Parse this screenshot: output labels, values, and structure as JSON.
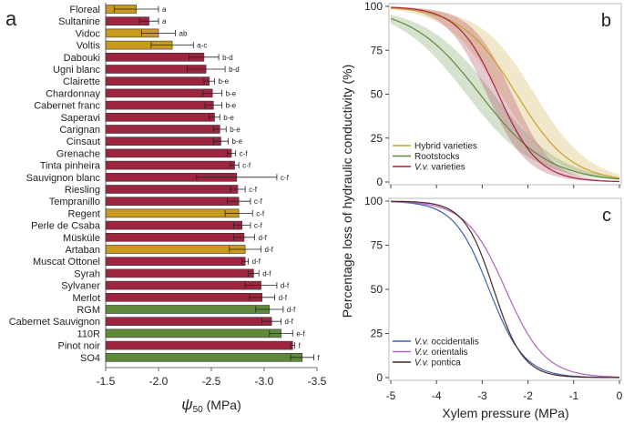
{
  "chart_data": [
    {
      "type": "bar",
      "orientation": "horizontal",
      "panel_label": "a",
      "xlabel_symbol": "ψ",
      "xlabel_sub": "50",
      "xlabel_unit": " (MPa)",
      "xlim": [
        -1.5,
        -3.5
      ],
      "xticks": [
        -1.5,
        -2.0,
        -2.5,
        -3.0,
        -3.5
      ],
      "xtick_labels": [
        "-1.5",
        "-2.0",
        "-2.5",
        "-3.0",
        "-3.5"
      ],
      "group_colors": {
        "hybrid": "#c99a1e",
        "vinifera": "#9e2540",
        "rootstock": "#5e8a3a"
      },
      "bars": [
        {
          "name": "Floreal",
          "group": "hybrid",
          "value": -1.79,
          "err": 0.21,
          "letters": "a"
        },
        {
          "name": "Sultanine",
          "group": "vinifera",
          "value": -1.91,
          "err": 0.09,
          "letters": "a"
        },
        {
          "name": "Vidoc",
          "group": "hybrid",
          "value": -2.0,
          "err": 0.16,
          "letters": "ab"
        },
        {
          "name": "Voltis",
          "group": "hybrid",
          "value": -2.13,
          "err": 0.2,
          "letters": "a-c"
        },
        {
          "name": "Dabouki",
          "group": "vinifera",
          "value": -2.43,
          "err": 0.14,
          "letters": "b-d"
        },
        {
          "name": "Ugni blanc",
          "group": "vinifera",
          "value": -2.45,
          "err": 0.18,
          "letters": "b-d"
        },
        {
          "name": "Clairette",
          "group": "vinifera",
          "value": -2.48,
          "err": 0.05,
          "letters": "b-e"
        },
        {
          "name": "Chardonnay",
          "group": "vinifera",
          "value": -2.51,
          "err": 0.09,
          "letters": "b-e"
        },
        {
          "name": "Cabernet franc",
          "group": "vinifera",
          "value": -2.52,
          "err": 0.08,
          "letters": "b-e"
        },
        {
          "name": "Saperavi",
          "group": "vinifera",
          "value": -2.53,
          "err": 0.05,
          "letters": "b-e"
        },
        {
          "name": "Carignan",
          "group": "vinifera",
          "value": -2.58,
          "err": 0.06,
          "letters": "b-e"
        },
        {
          "name": "Cinsaut",
          "group": "vinifera",
          "value": -2.59,
          "err": 0.07,
          "letters": "b-e"
        },
        {
          "name": "Grenache",
          "group": "vinifera",
          "value": -2.69,
          "err": 0.04,
          "letters": "c-f"
        },
        {
          "name": "Tinta pinheira",
          "group": "vinifera",
          "value": -2.72,
          "err": 0.04,
          "letters": "c-f"
        },
        {
          "name": "Sauvignon blanc",
          "group": "vinifera",
          "value": -2.74,
          "err": 0.38,
          "letters": "c-f"
        },
        {
          "name": "Riesling",
          "group": "vinifera",
          "value": -2.75,
          "err": 0.07,
          "letters": "c-f"
        },
        {
          "name": "Tempranillo",
          "group": "vinifera",
          "value": -2.76,
          "err": 0.11,
          "letters": "c-f"
        },
        {
          "name": "Regent",
          "group": "hybrid",
          "value": -2.76,
          "err": 0.13,
          "letters": "c-f"
        },
        {
          "name": "Perle de Csaba",
          "group": "vinifera",
          "value": -2.79,
          "err": 0.08,
          "letters": "c-f"
        },
        {
          "name": "Müsküle",
          "group": "vinifera",
          "value": -2.81,
          "err": 0.1,
          "letters": "d-f"
        },
        {
          "name": "Artaban",
          "group": "hybrid",
          "value": -2.82,
          "err": 0.15,
          "letters": "d-f"
        },
        {
          "name": "Muscat Ottonel",
          "group": "vinifera",
          "value": -2.82,
          "err": 0.03,
          "letters": "d-f"
        },
        {
          "name": "Syrah",
          "group": "vinifera",
          "value": -2.9,
          "err": 0.05,
          "letters": "d-f"
        },
        {
          "name": "Sylvaner",
          "group": "vinifera",
          "value": -2.97,
          "err": 0.15,
          "letters": "d-f"
        },
        {
          "name": "Merlot",
          "group": "vinifera",
          "value": -2.98,
          "err": 0.12,
          "letters": "d-f"
        },
        {
          "name": "RGM",
          "group": "rootstock",
          "value": -3.05,
          "err": 0.13,
          "letters": "d-f"
        },
        {
          "name": "Cabernet Sauvignon",
          "group": "vinifera",
          "value": -3.07,
          "err": 0.09,
          "letters": "d-f"
        },
        {
          "name": "110R",
          "group": "rootstock",
          "value": -3.16,
          "err": 0.11,
          "letters": "e-f"
        },
        {
          "name": "Pinot noir",
          "group": "vinifera",
          "value": -3.27,
          "err": 0.02,
          "letters": "f"
        },
        {
          "name": "SO4",
          "group": "rootstock",
          "value": -3.36,
          "err": 0.11,
          "letters": "f"
        }
      ]
    },
    {
      "type": "line",
      "panel_label": "b",
      "model": "sigmoid PLC = 100/(1+exp(slope*(P-P50)))",
      "xlim": [
        -5,
        0
      ],
      "ylim": [
        0,
        100
      ],
      "yticks": [
        "0",
        "25",
        "50",
        "75",
        "100"
      ],
      "series": [
        {
          "name": "Hybrid varieties",
          "color": "#c9a02c",
          "p50": -2.25,
          "slope": 1.67,
          "band_p50": [
            -2.6,
            -1.85
          ]
        },
        {
          "name": "Rootstocks",
          "color": "#5f8a3c",
          "p50": -3.05,
          "slope": 1.33,
          "band_p50": [
            -3.35,
            -2.75
          ]
        },
        {
          "name": "V.v. varieties",
          "color": "#a3243f",
          "p50": -2.65,
          "slope": 2.25,
          "band_p50": [
            -2.9,
            -2.35
          ]
        }
      ]
    },
    {
      "type": "line",
      "panel_label": "c",
      "xlabel": "Xylem pressure (MPa)",
      "ylabel": "Percentage loss of hydraulic conductivity (%)",
      "xlim": [
        -5,
        0
      ],
      "ylim": [
        0,
        100
      ],
      "xticks": [
        "-5",
        "-4",
        "-3",
        "-2",
        "-1",
        "0"
      ],
      "yticks": [
        "0",
        "25",
        "50",
        "75",
        "100"
      ],
      "series": [
        {
          "name": "V.v. occidentalis",
          "color": "#3b62b0",
          "p50": -2.85,
          "slope": 2.6
        },
        {
          "name": "V.v. orientalis",
          "color": "#b262c4",
          "p50": -2.49,
          "slope": 2.3
        },
        {
          "name": "V.v. pontica",
          "color": "#4a2820",
          "p50": -2.75,
          "slope": 3.1
        }
      ]
    }
  ]
}
